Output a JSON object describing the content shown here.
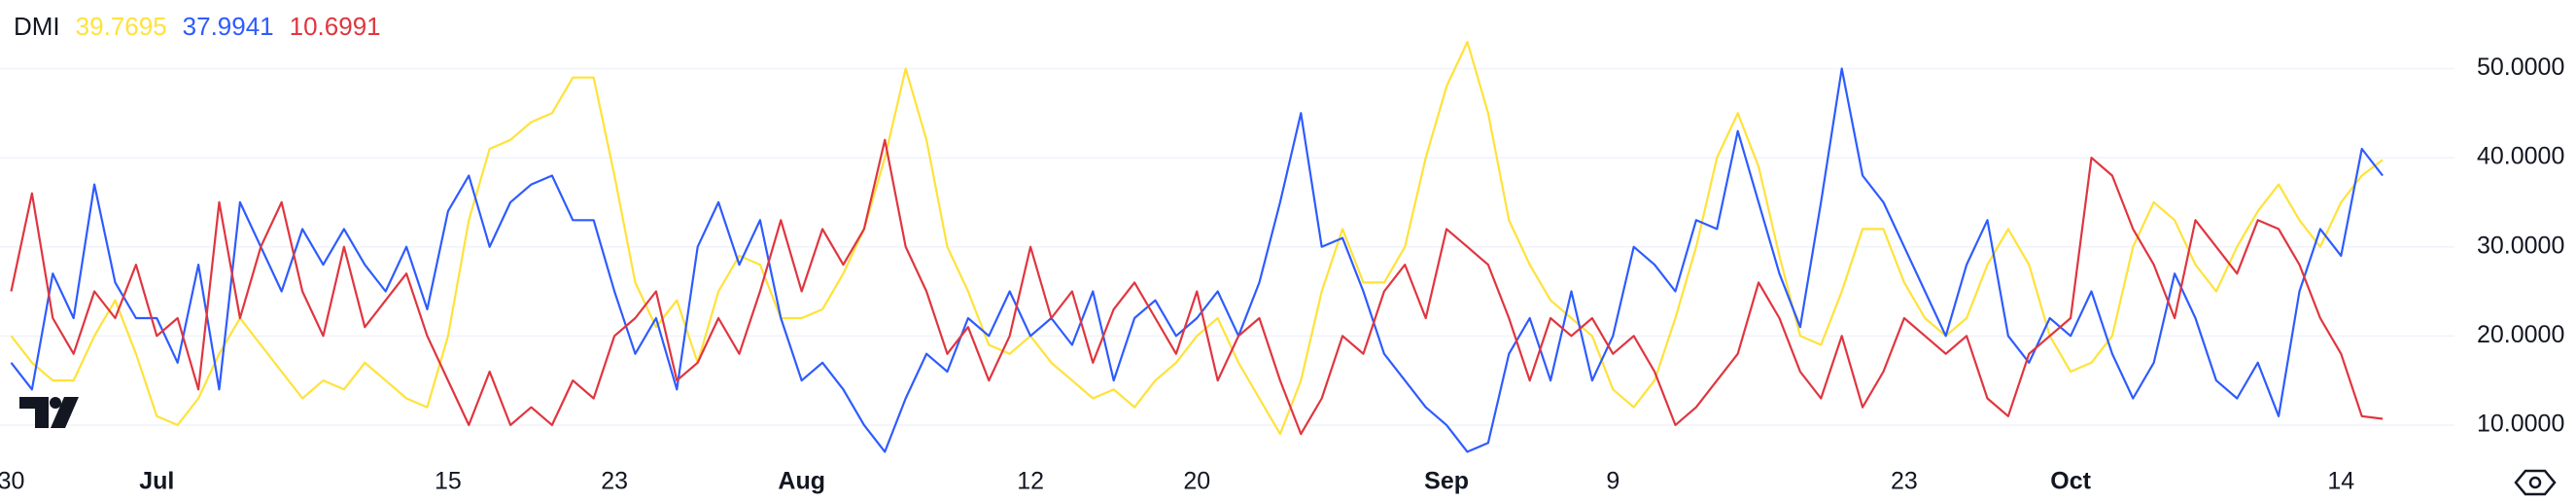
{
  "chart_data": {
    "type": "line",
    "title": "DMI",
    "categories": [
      "30",
      null,
      null,
      null,
      null,
      null,
      null,
      "Jul",
      null,
      null,
      null,
      null,
      null,
      null,
      null,
      null,
      null,
      null,
      null,
      null,
      null,
      "15",
      null,
      null,
      null,
      null,
      null,
      null,
      null,
      "23",
      null,
      null,
      null,
      null,
      null,
      null,
      null,
      null,
      "Aug",
      null,
      null,
      null,
      null,
      null,
      null,
      null,
      null,
      null,
      null,
      "12",
      null,
      null,
      null,
      null,
      null,
      null,
      null,
      "20",
      null,
      null,
      null,
      null,
      null,
      null,
      null,
      null,
      null,
      null,
      null,
      "Sep",
      null,
      null,
      null,
      null,
      null,
      null,
      null,
      "9",
      null,
      null,
      null,
      null,
      null,
      null,
      null,
      null,
      null,
      null,
      null,
      null,
      null,
      "23",
      null,
      null,
      null,
      null,
      null,
      null,
      null,
      "Oct",
      null,
      null,
      null,
      null,
      null,
      null,
      null,
      null,
      null,
      null,
      null,
      null,
      "14",
      null,
      null
    ],
    "series": [
      {
        "color": "#ffe23a",
        "values": [
          20,
          17,
          15,
          15,
          20,
          24,
          18,
          11,
          10,
          13,
          18,
          22,
          19,
          16,
          13,
          15,
          14,
          17,
          15,
          13,
          12,
          20,
          33,
          41,
          42,
          44,
          45,
          49,
          49,
          38,
          26,
          21,
          24,
          17,
          25,
          29,
          28,
          22,
          22,
          23,
          27,
          32,
          40,
          50,
          42,
          30,
          25,
          19,
          18,
          20,
          17,
          15,
          13,
          14,
          12,
          15,
          17,
          20,
          22,
          17,
          13,
          9,
          15,
          25,
          32,
          26,
          26,
          30,
          40,
          48,
          53,
          45,
          33,
          28,
          24,
          22,
          20,
          14,
          12,
          15,
          22,
          30,
          40,
          45,
          39,
          29,
          20,
          19,
          25,
          32,
          32,
          26,
          22,
          20,
          22,
          28,
          32,
          28,
          20,
          16,
          17,
          20,
          30,
          35,
          33,
          28,
          25,
          30,
          34,
          37,
          33,
          30,
          35,
          38,
          39.7695
        ]
      },
      {
        "color": "#2e5bff",
        "values": [
          17,
          14,
          27,
          22,
          37,
          26,
          22,
          22,
          17,
          28,
          14,
          35,
          30,
          25,
          32,
          28,
          32,
          28,
          25,
          30,
          23,
          34,
          38,
          30,
          35,
          37,
          38,
          33,
          33,
          25,
          18,
          22,
          14,
          30,
          35,
          28,
          33,
          22,
          15,
          17,
          14,
          10,
          7,
          13,
          18,
          16,
          22,
          20,
          25,
          20,
          22,
          19,
          25,
          15,
          22,
          24,
          20,
          22,
          25,
          20,
          26,
          35,
          45,
          30,
          31,
          25,
          18,
          15,
          12,
          10,
          7,
          8,
          18,
          22,
          15,
          25,
          15,
          20,
          30,
          28,
          25,
          33,
          32,
          43,
          35,
          27,
          21,
          35,
          50,
          38,
          35,
          30,
          25,
          20,
          28,
          33,
          20,
          17,
          22,
          20,
          25,
          18,
          13,
          17,
          27,
          22,
          15,
          13,
          17,
          11,
          25,
          32,
          29,
          41,
          37.9941
        ]
      },
      {
        "color": "#e0353f",
        "values": [
          25,
          36,
          22,
          18,
          25,
          22,
          28,
          20,
          22,
          14,
          35,
          22,
          30,
          35,
          25,
          20,
          30,
          21,
          24,
          27,
          20,
          15,
          10,
          16,
          10,
          12,
          10,
          15,
          13,
          20,
          22,
          25,
          15,
          17,
          22,
          18,
          25,
          33,
          25,
          32,
          28,
          32,
          42,
          30,
          25,
          18,
          21,
          15,
          20,
          30,
          22,
          25,
          17,
          23,
          26,
          22,
          18,
          25,
          15,
          20,
          22,
          15,
          9,
          13,
          20,
          18,
          25,
          28,
          22,
          32,
          30,
          28,
          22,
          15,
          22,
          20,
          22,
          18,
          20,
          16,
          10,
          12,
          15,
          18,
          26,
          22,
          16,
          13,
          20,
          12,
          16,
          22,
          20,
          18,
          20,
          13,
          11,
          18,
          20,
          22,
          40,
          38,
          32,
          28,
          22,
          33,
          30,
          27,
          33,
          32,
          28,
          22,
          18,
          11,
          10.6991
        ]
      }
    ],
    "ylim": [
      5.3,
      57.7
    ],
    "yticks": [
      {
        "value": 10,
        "label": "10.0000"
      },
      {
        "value": 20,
        "label": "20.0000"
      },
      {
        "value": 30,
        "label": "30.0000"
      },
      {
        "value": 40,
        "label": "40.0000"
      },
      {
        "value": 50,
        "label": "50.0000"
      }
    ],
    "grid": true
  }
}
